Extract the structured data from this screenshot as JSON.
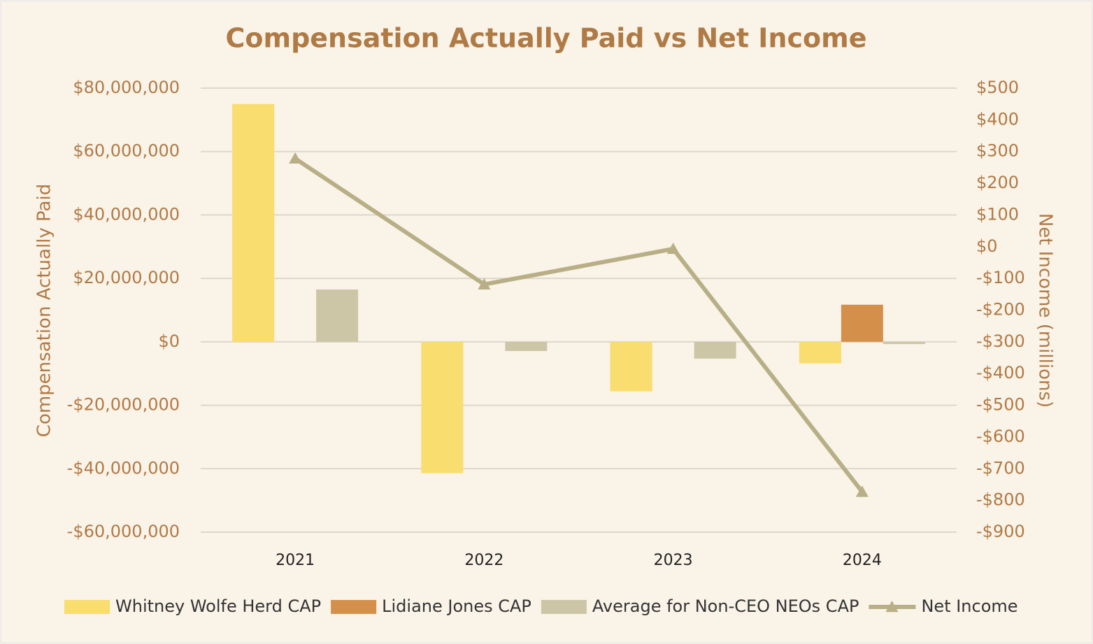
{
  "chart_data": {
    "type": "bar",
    "title": "Compensation Actually Paid vs Net Income",
    "y_label": "Compensation Actually Paid",
    "y2_label": "Net Income (millions)",
    "categories": [
      "2021",
      "2022",
      "2023",
      "2024"
    ],
    "series": [
      {
        "name": "Whitney Wolfe Herd CAP",
        "color": "#f9dd6e",
        "values": [
          75000000,
          -41400000,
          -15600000,
          -6800000
        ]
      },
      {
        "name": "Lidiane Jones CAP",
        "color": "#d4904a",
        "values": [
          null,
          null,
          null,
          11700000
        ]
      },
      {
        "name": "Average for Non-CEO NEOs CAP",
        "color": "#cdc6a6",
        "values": [
          16500000,
          -2900000,
          -5300000,
          -700000
        ]
      },
      {
        "name": "Net Income",
        "type": "line",
        "axis": "y2",
        "color": "#b8af86",
        "values": [
          278,
          -119,
          -7,
          -773
        ]
      }
    ],
    "ylim": [
      -60000000,
      80000000
    ],
    "yticks": [
      {
        "value": -60000000,
        "label": "-$60,000,000"
      },
      {
        "value": -40000000,
        "label": "-$40,000,000"
      },
      {
        "value": -20000000,
        "label": "-$20,000,000"
      },
      {
        "value": 0,
        "label": "$0"
      },
      {
        "value": 20000000,
        "label": "$20,000,000"
      },
      {
        "value": 40000000,
        "label": "$40,000,000"
      },
      {
        "value": 60000000,
        "label": "$60,000,000"
      },
      {
        "value": 80000000,
        "label": "$80,000,000"
      }
    ],
    "y2lim": [
      -900,
      500
    ],
    "y2ticks": [
      {
        "value": -900,
        "label": "-$900"
      },
      {
        "value": -800,
        "label": "-$800"
      },
      {
        "value": -700,
        "label": "-$700"
      },
      {
        "value": -600,
        "label": "-$600"
      },
      {
        "value": -500,
        "label": "-$500"
      },
      {
        "value": -400,
        "label": "-$400"
      },
      {
        "value": -300,
        "label": "-$300"
      },
      {
        "value": -200,
        "label": "-$200"
      },
      {
        "value": -100,
        "label": "-$100"
      },
      {
        "value": 0,
        "label": "$0"
      },
      {
        "value": 100,
        "label": "$100"
      },
      {
        "value": 200,
        "label": "$200"
      },
      {
        "value": 300,
        "label": "$300"
      },
      {
        "value": 400,
        "label": "$400"
      },
      {
        "value": 500,
        "label": "$500"
      }
    ],
    "grid": true,
    "legend": "bottom"
  }
}
